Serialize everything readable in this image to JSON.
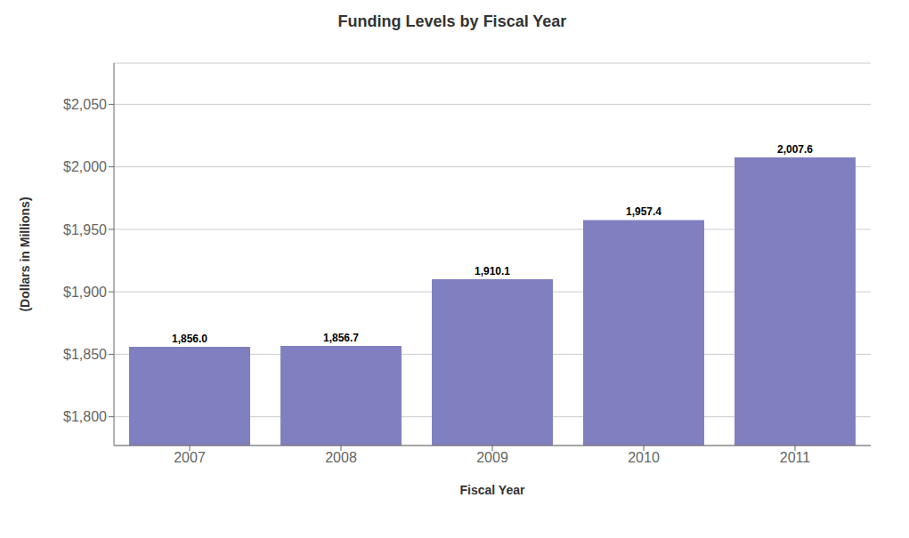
{
  "chart_data": {
    "type": "bar",
    "title": "Funding Levels by Fiscal Year",
    "xlabel": "Fiscal Year",
    "ylabel": "(Dollars in Millions)",
    "categories": [
      "2007",
      "2008",
      "2009",
      "2010",
      "2011"
    ],
    "values": [
      1856.0,
      1856.7,
      1910.1,
      1957.4,
      2007.6
    ],
    "value_labels": [
      "1,856.0",
      "1,856.7",
      "1,910.1",
      "1,957.4",
      "2,007.6"
    ],
    "data_labels": true,
    "color": "#8080c0",
    "ylim": [
      1777,
      2083
    ],
    "yticks": [
      {
        "value": 1800,
        "label": "$1,800"
      },
      {
        "value": 1850,
        "label": "$1,850"
      },
      {
        "value": 1900,
        "label": "$1,900"
      },
      {
        "value": 1950,
        "label": "$1,950"
      },
      {
        "value": 2000,
        "label": "$2,000"
      },
      {
        "value": 2050,
        "label": "$2,050"
      }
    ],
    "grid": true
  }
}
